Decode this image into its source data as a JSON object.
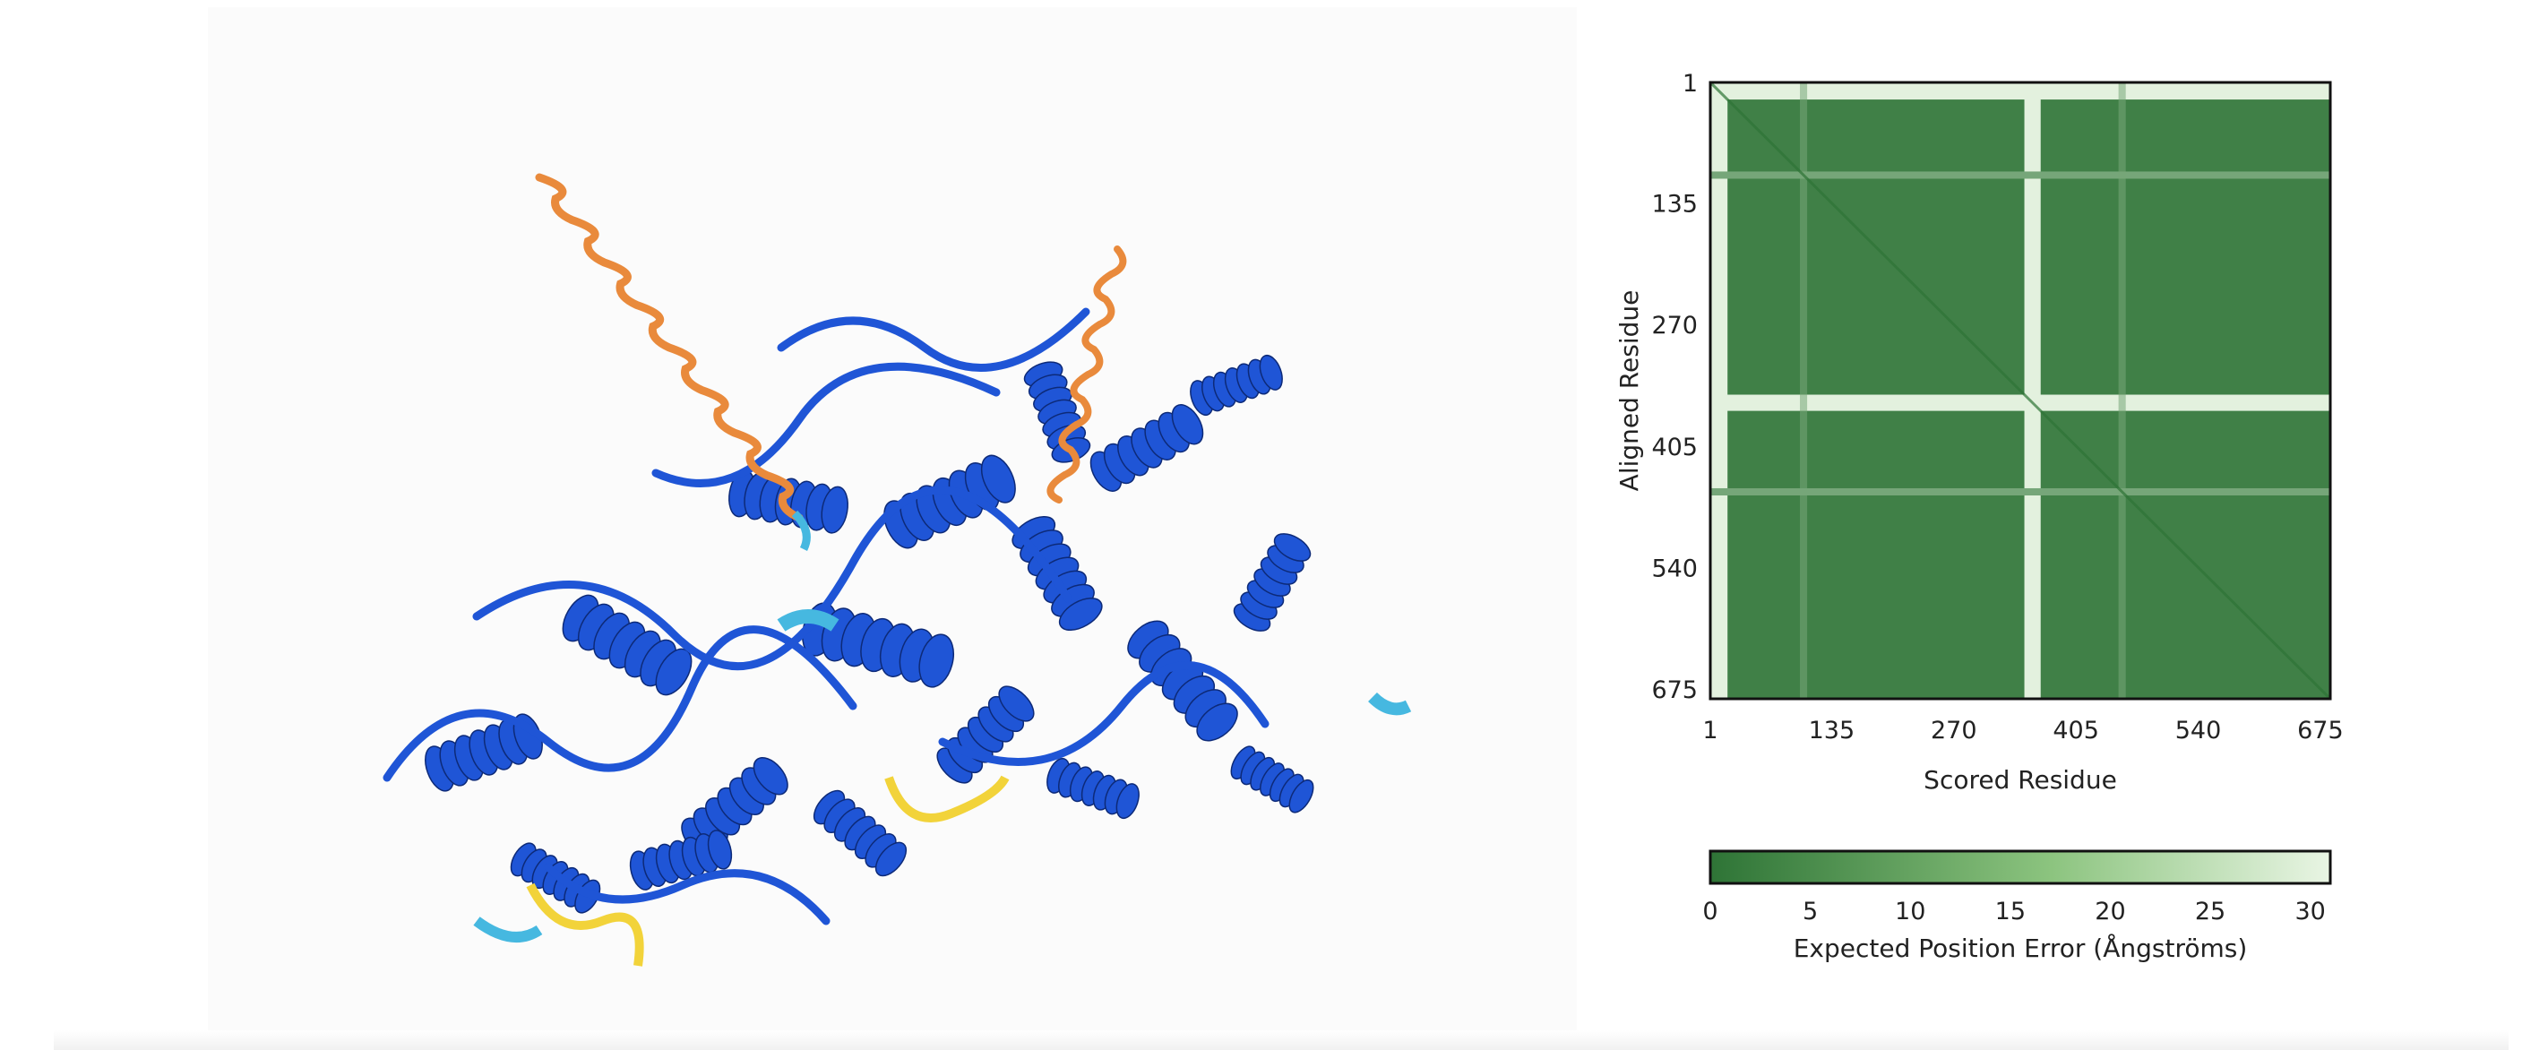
{
  "structure_viewer": {
    "confidence_colors": {
      "very_high": "#1f55d6",
      "confident": "#46b8e0",
      "low": "#f2d33a",
      "very_low": "#e98a3c"
    }
  },
  "pae_plot": {
    "y_axis_label": "Aligned Residue",
    "x_axis_label": "Scored Residue",
    "y_ticks": [
      "1",
      "135",
      "270",
      "405",
      "540",
      "675"
    ],
    "x_ticks": [
      "1",
      "135",
      "270",
      "405",
      "540",
      "675"
    ],
    "colorbar": {
      "label": "Expected Position Error (Ångströms)",
      "ticks": [
        "0",
        "5",
        "10",
        "15",
        "20",
        "25",
        "30"
      ],
      "color_low": "#2e7436",
      "color_high": "#e9f5e4"
    }
  },
  "chart_data": {
    "type": "heatmap",
    "xlabel": "Scored Residue",
    "ylabel": "Aligned Residue",
    "xlim": [
      1,
      686
    ],
    "ylim": [
      1,
      686
    ],
    "x_ticks": [
      1,
      135,
      270,
      405,
      540,
      675
    ],
    "y_ticks": [
      1,
      135,
      270,
      405,
      540,
      675
    ],
    "colorbar_range": [
      0,
      31
    ],
    "colorbar_label": "Expected Position Error (Ångströms)",
    "colorbar_ticks": [
      0,
      5,
      10,
      15,
      20,
      25,
      30
    ],
    "high_error_residue_bands": [
      {
        "residues": [
          1,
          20
        ],
        "error": 30
      },
      {
        "residues": [
          348,
          366
        ],
        "error": 30
      },
      {
        "residues": [
          100,
          108
        ],
        "error": 12
      },
      {
        "residues": [
          452,
          460
        ],
        "error": 12
      }
    ],
    "background_error": 3,
    "diagonal_error": 0
  }
}
